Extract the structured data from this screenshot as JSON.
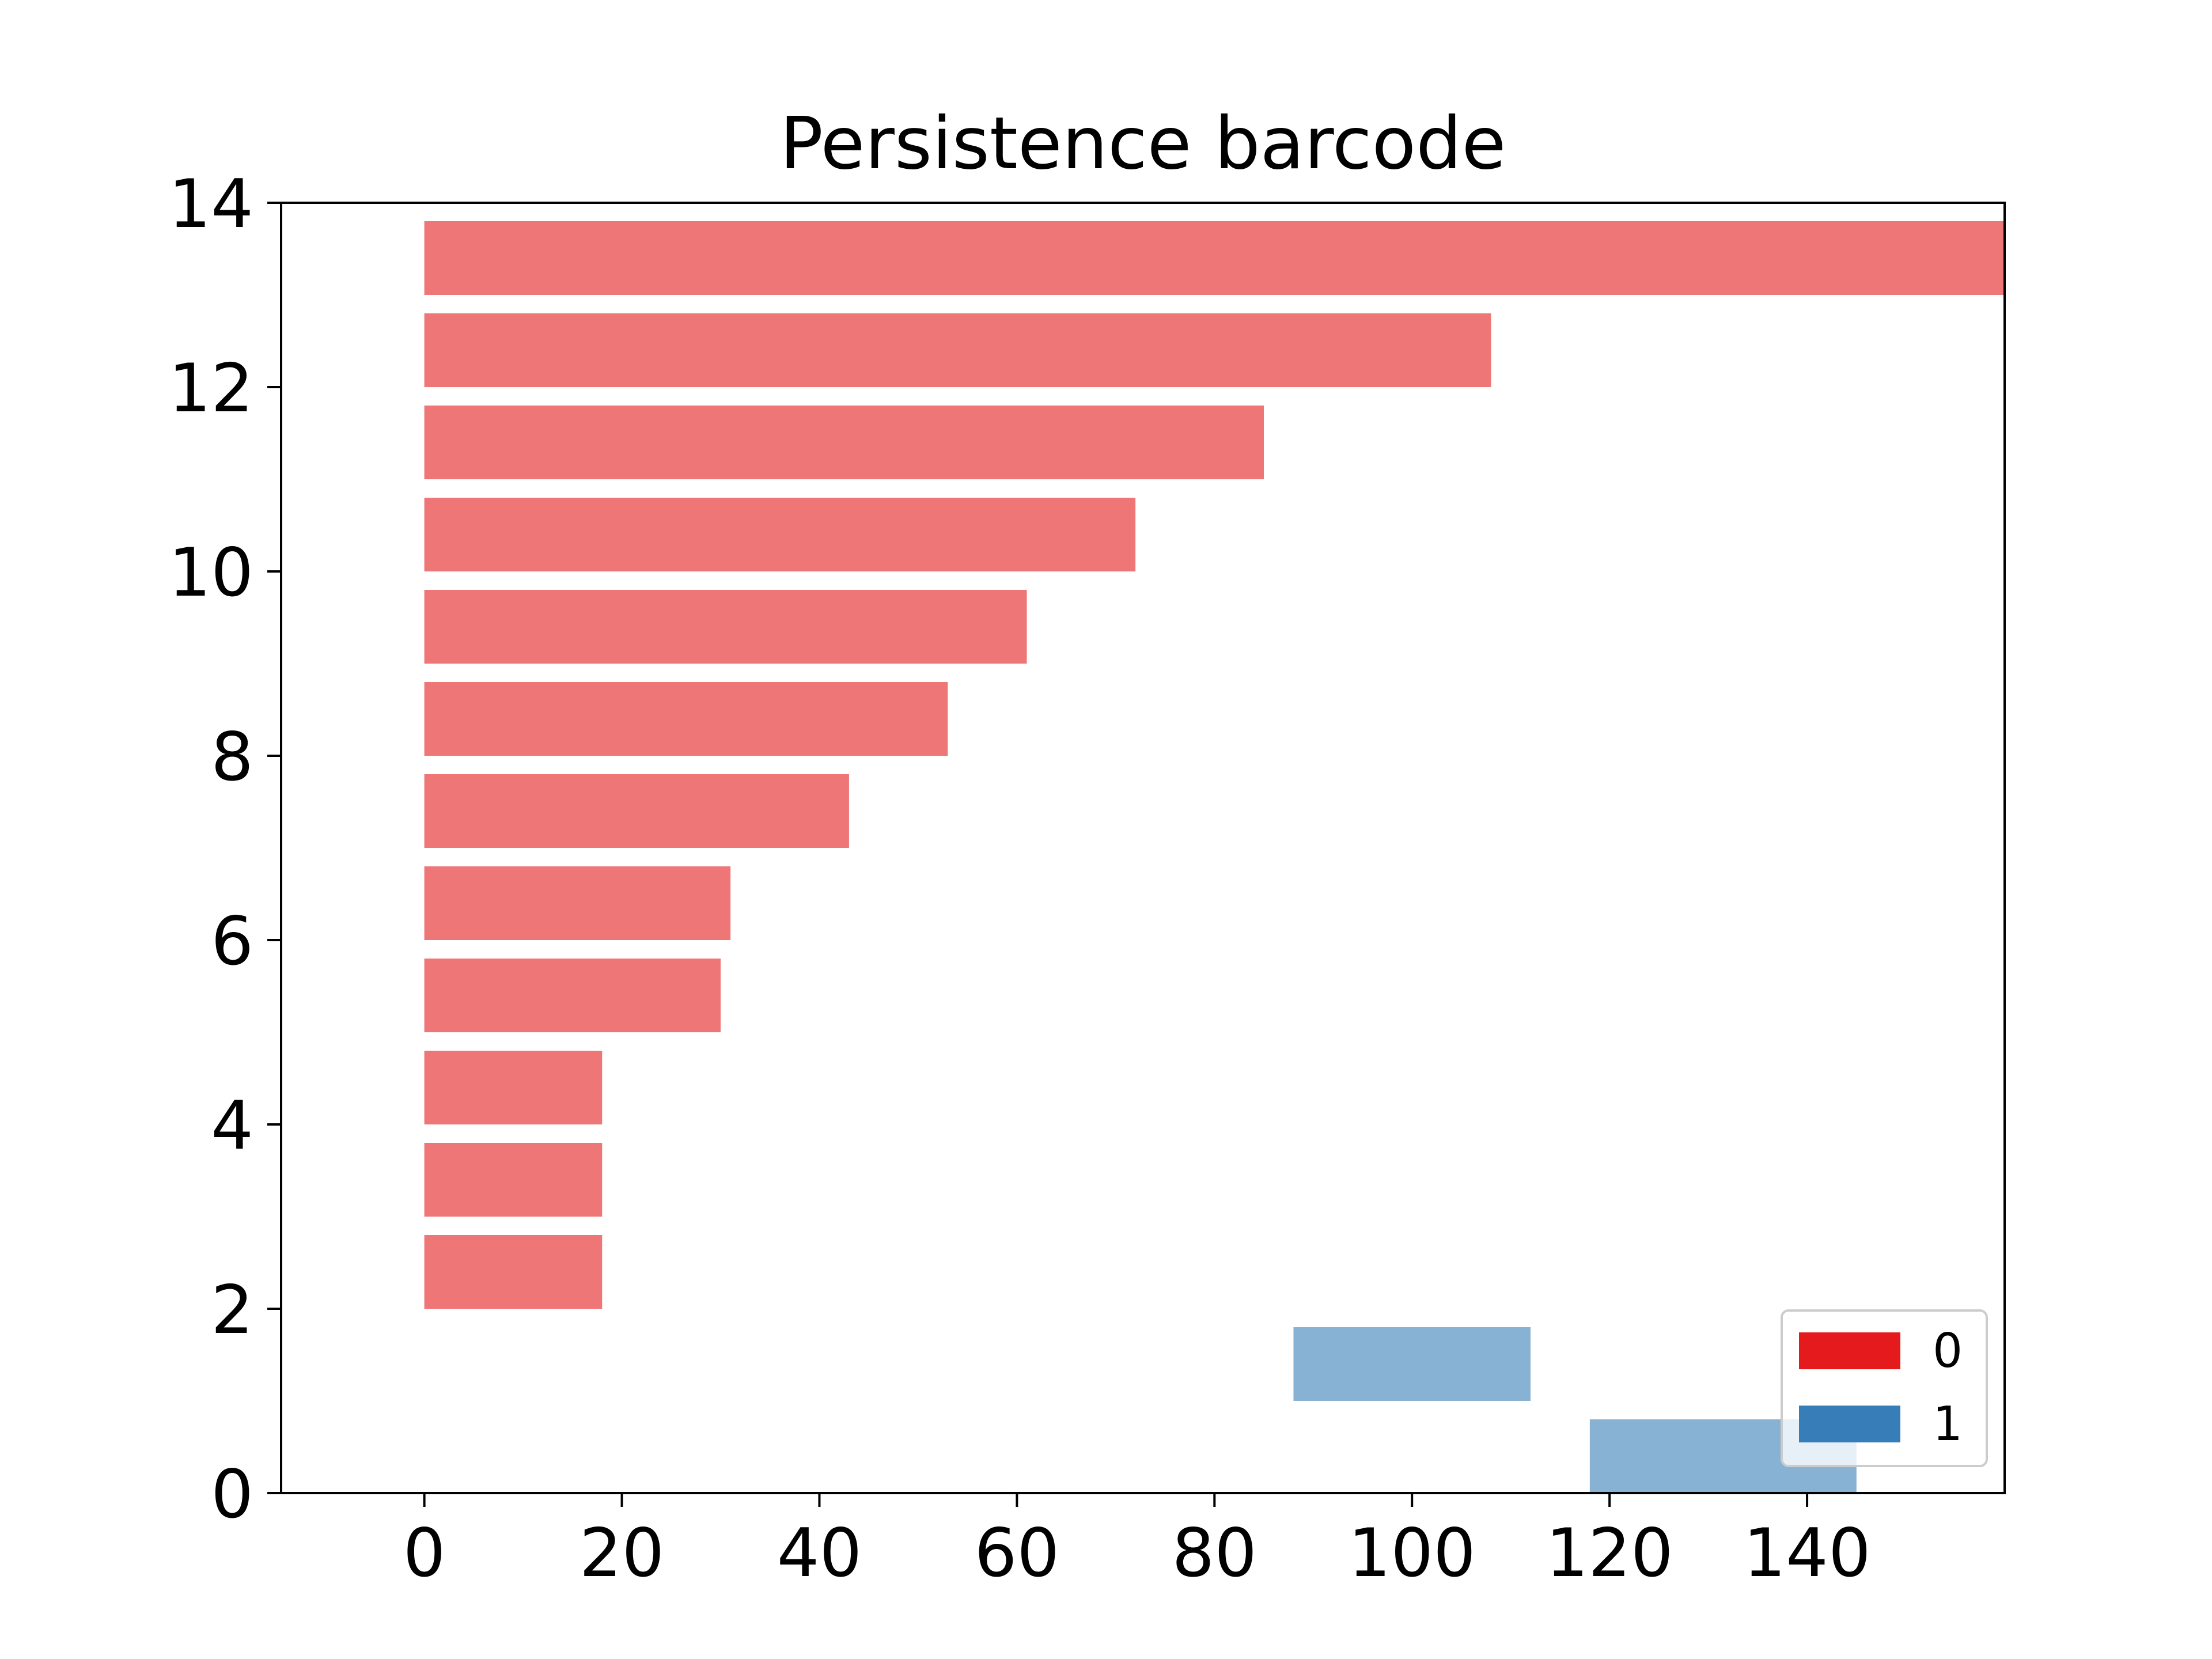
{
  "chart_data": {
    "type": "bar",
    "orientation": "horizontal-intervals",
    "title": "Persistence barcode",
    "xlabel": "",
    "ylabel": "",
    "xlim": [
      -14.5,
      160
    ],
    "ylim": [
      0,
      14
    ],
    "xticks": [
      0,
      20,
      40,
      60,
      80,
      100,
      120,
      140
    ],
    "yticks": [
      0,
      2,
      4,
      6,
      8,
      10,
      12,
      14
    ],
    "grid": false,
    "legend_position": "lower-right",
    "series": [
      {
        "name": "0",
        "color": "#e41a1c",
        "bar_alpha": 0.6,
        "bars": [
          {
            "y": 13,
            "start": 0,
            "end": 160
          },
          {
            "y": 12,
            "start": 0,
            "end": 108
          },
          {
            "y": 11,
            "start": 0,
            "end": 85
          },
          {
            "y": 10,
            "start": 0,
            "end": 72
          },
          {
            "y": 9,
            "start": 0,
            "end": 61
          },
          {
            "y": 8,
            "start": 0,
            "end": 53
          },
          {
            "y": 7,
            "start": 0,
            "end": 43
          },
          {
            "y": 6,
            "start": 0,
            "end": 31
          },
          {
            "y": 5,
            "start": 0,
            "end": 30
          },
          {
            "y": 4,
            "start": 0,
            "end": 18
          },
          {
            "y": 3,
            "start": 0,
            "end": 18
          },
          {
            "y": 2,
            "start": 0,
            "end": 18
          }
        ]
      },
      {
        "name": "1",
        "color": "#377eb8",
        "bar_alpha": 0.6,
        "bars": [
          {
            "y": 1,
            "start": 88,
            "end": 112
          },
          {
            "y": 0,
            "start": 118,
            "end": 145
          }
        ]
      }
    ]
  }
}
